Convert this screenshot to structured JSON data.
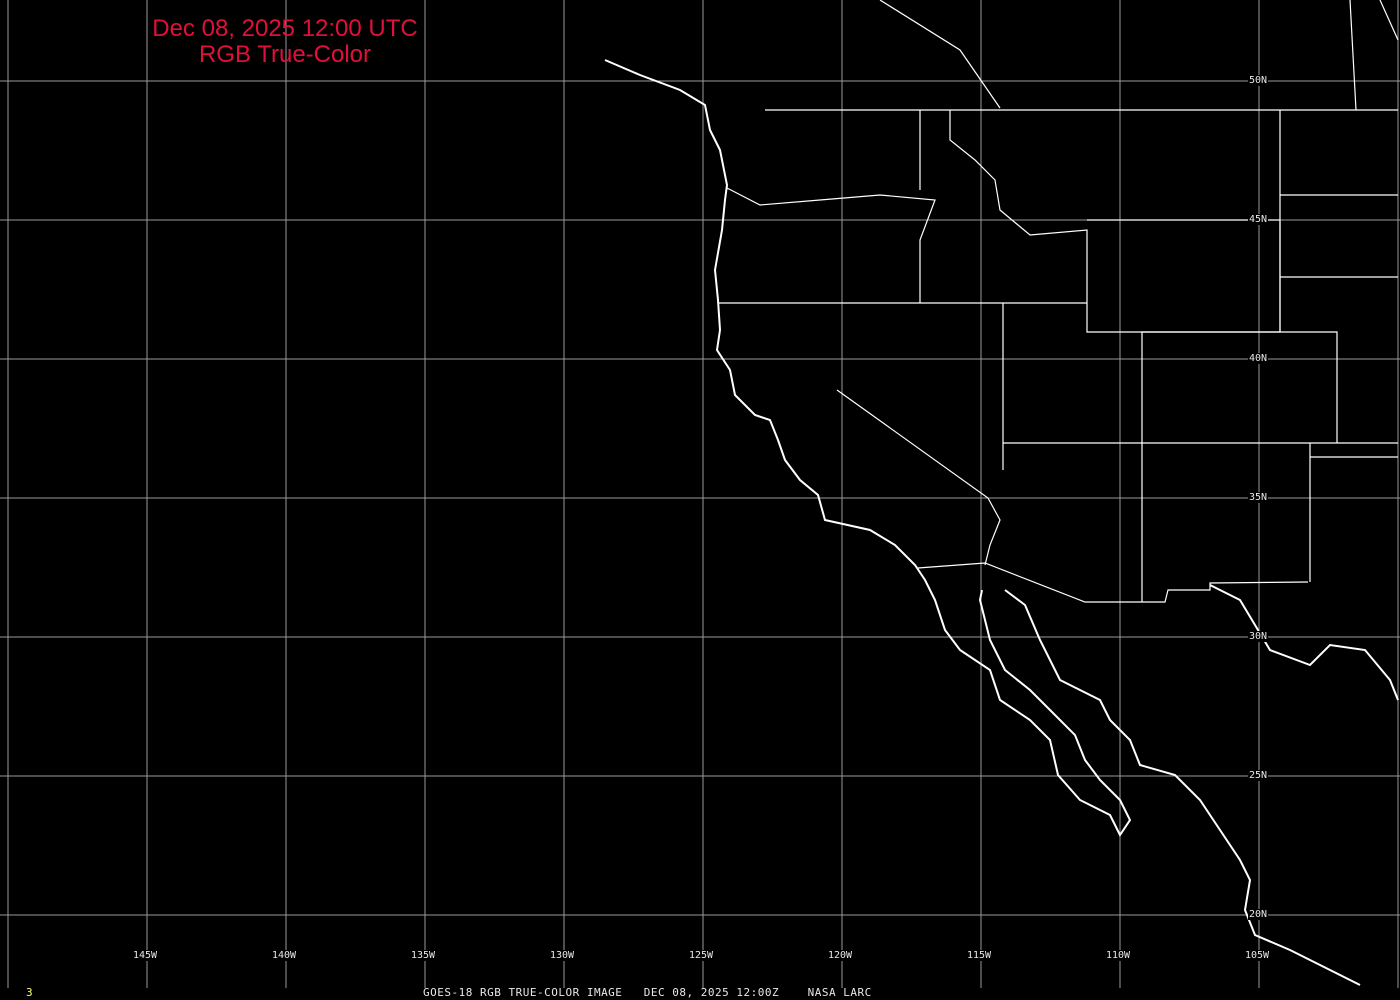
{
  "title": {
    "line1": "Dec 08, 2025 12:00 UTC",
    "line2": "RGB True-Color"
  },
  "footer": {
    "frame": "3",
    "caption": "GOES-18 RGB TRUE-COLOR IMAGE   DEC 08, 2025 12:00Z    NASA LARC"
  },
  "longitude_labels": [
    "145W",
    "140W",
    "135W",
    "130W",
    "125W",
    "120W",
    "115W",
    "110W",
    "105W"
  ],
  "latitude_labels": [
    "50N",
    "45N",
    "40N",
    "35N",
    "30N",
    "25N",
    "20N"
  ],
  "colors": {
    "title": "#e0103a",
    "grid": "#9a9a9a",
    "coastline": "#ffffff",
    "frame_number": "#ffff66"
  }
}
